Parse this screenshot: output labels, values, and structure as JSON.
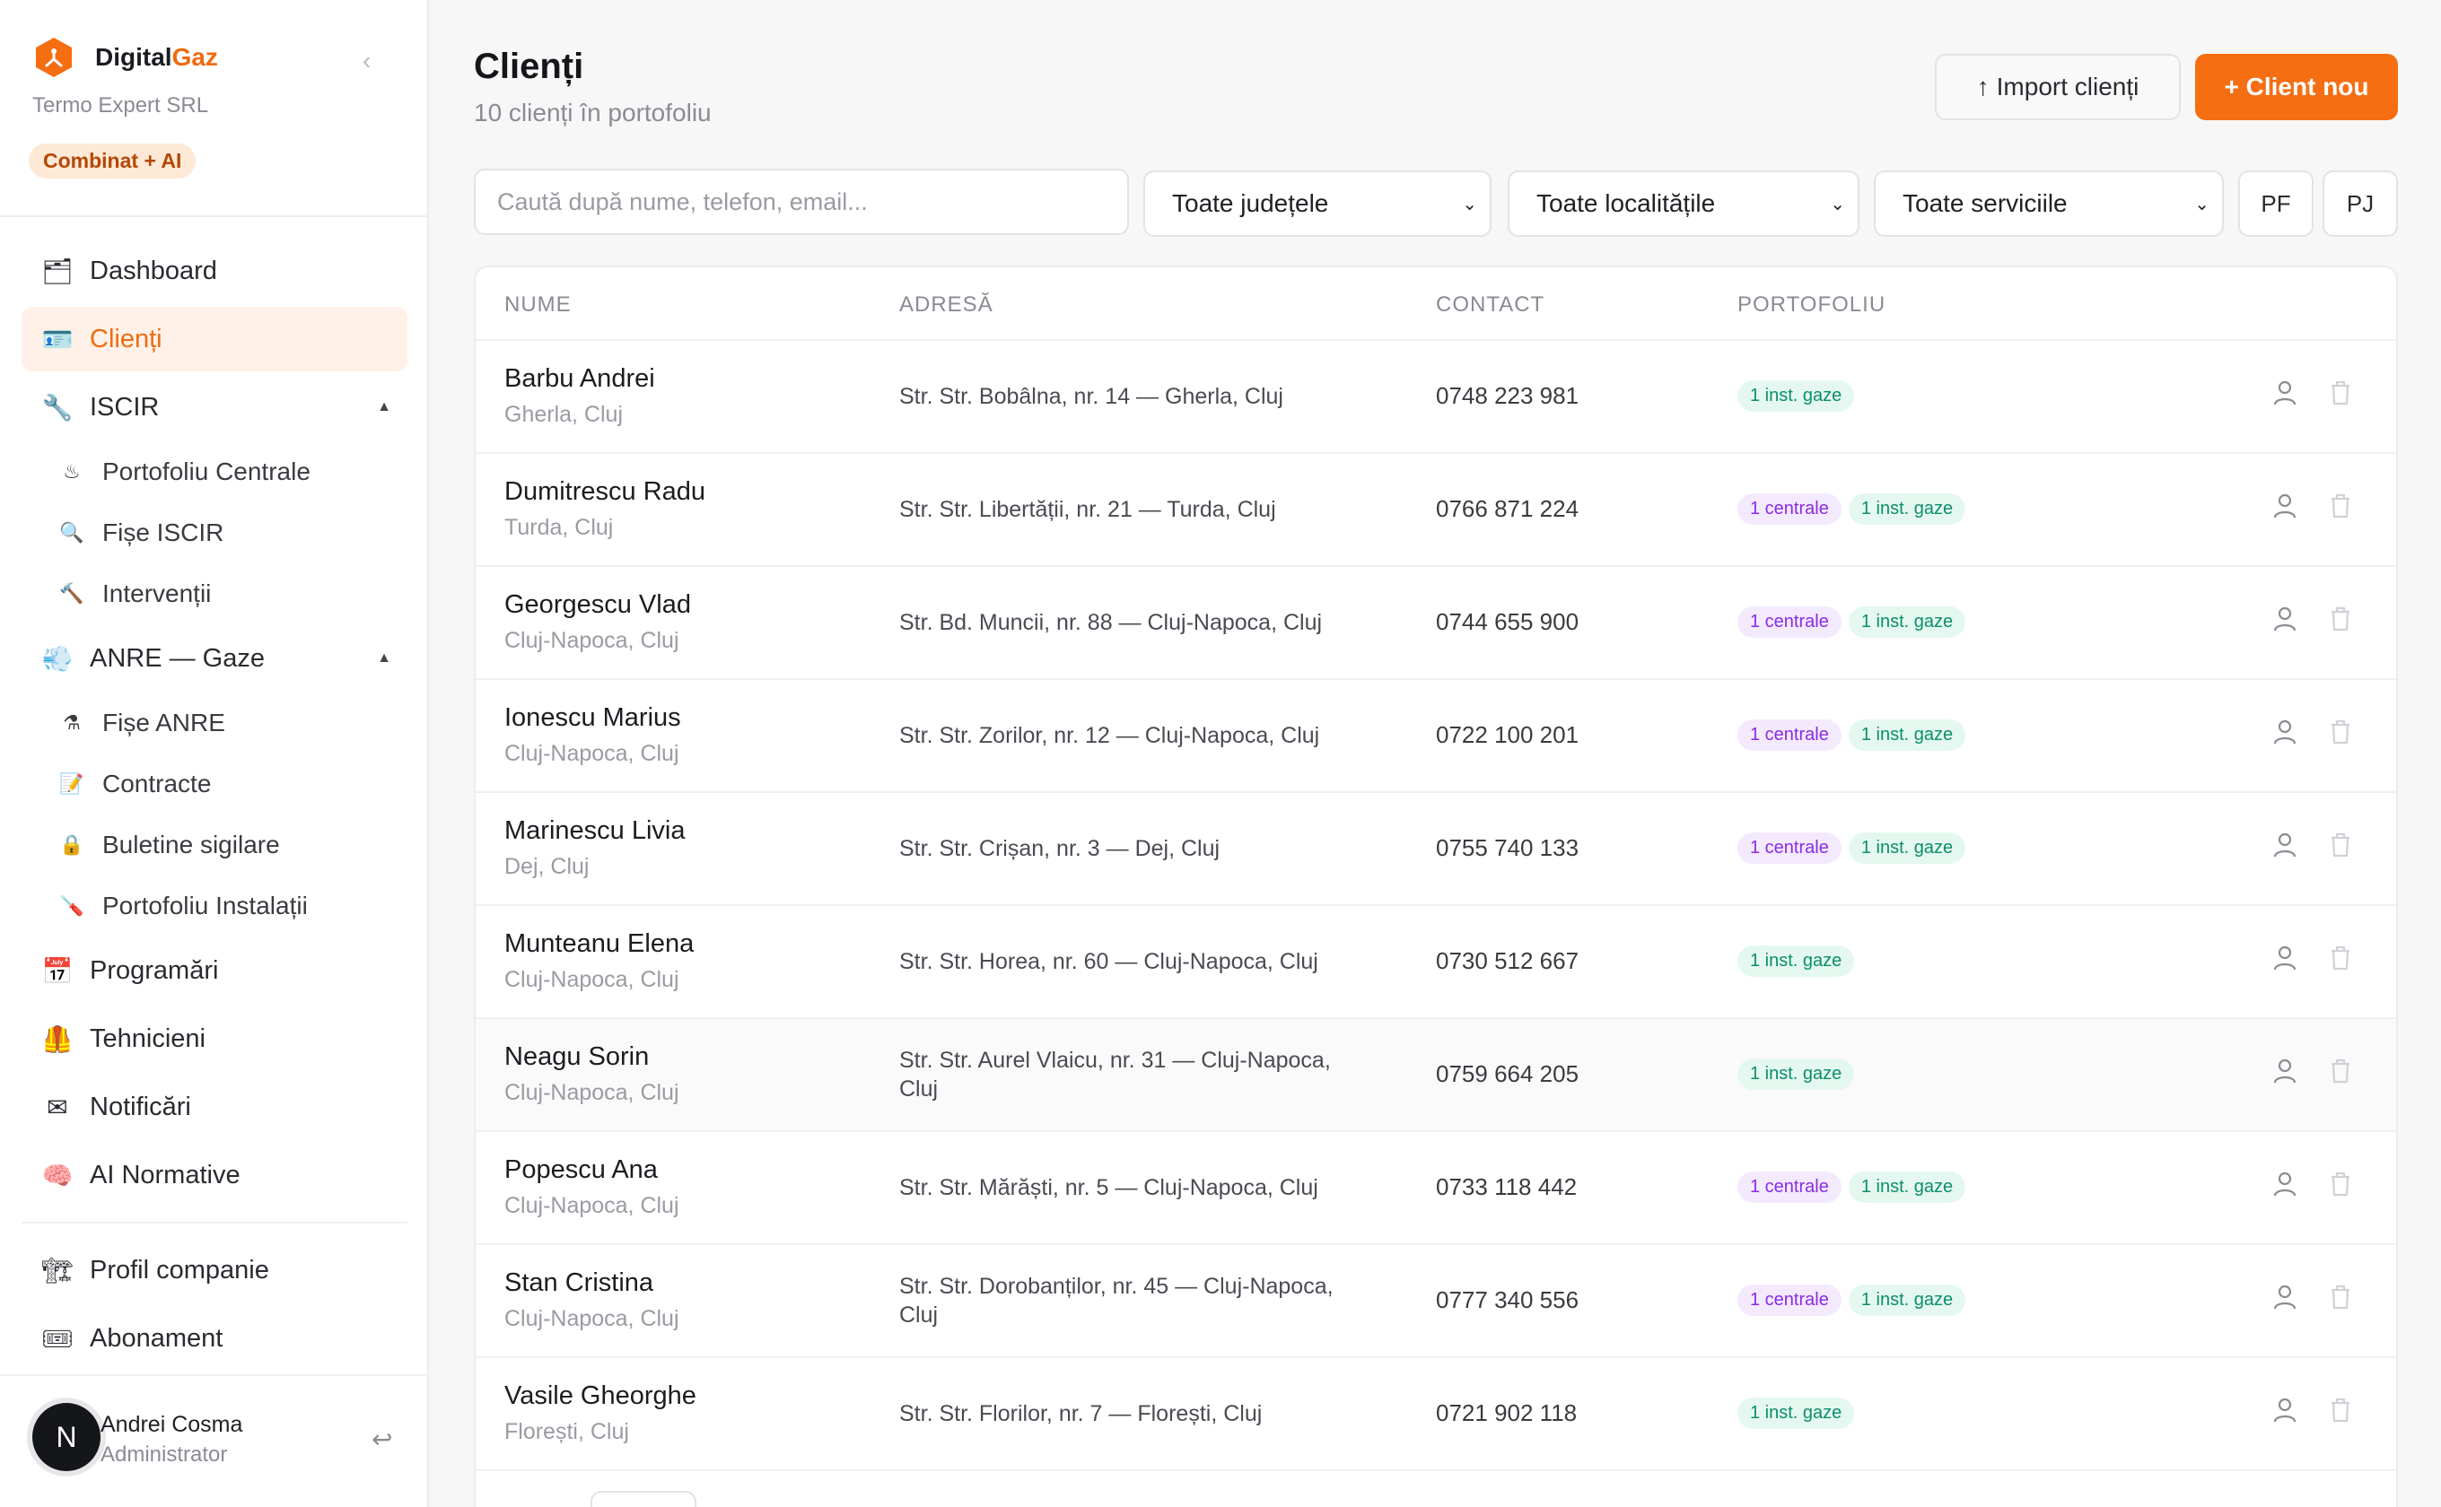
{
  "brand": {
    "name_a": "Digital",
    "name_b": "Gaz",
    "company": "Termo Expert SRL",
    "plan": "Combinat + AI"
  },
  "nav": {
    "dashboard": "Dashboard",
    "clienti": "Clienți",
    "iscir": "ISCIR",
    "iscir_items": [
      "Portofoliu Centrale",
      "Fișe ISCIR",
      "Intervenții"
    ],
    "anre": "ANRE — Gaze",
    "anre_items": [
      "Fișe ANRE",
      "Contracte",
      "Buletine sigilare",
      "Portofoliu Instalații"
    ],
    "programari": "Programări",
    "tehnicieni": "Tehnicieni",
    "notificari": "Notificări",
    "ai": "AI Normative",
    "profil": "Profil companie",
    "abonament": "Abonament"
  },
  "user": {
    "initial": "N",
    "name": "Andrei Cosma",
    "role": "Administrator"
  },
  "header": {
    "title": "Clienți",
    "subtitle": "10 clienți în portofoliu",
    "import_label": "Import clienți",
    "new_label": "+ Client nou"
  },
  "filters": {
    "search_placeholder": "Caută după nume, telefon, email...",
    "judet": "Toate județele",
    "localitate": "Toate localitățile",
    "serviciu": "Toate serviciile",
    "pf": "PF",
    "pj": "PJ"
  },
  "table": {
    "headers": [
      "NUME",
      "ADRESĂ",
      "CONTACT",
      "PORTOFOLIU"
    ],
    "tag_centrale": "1 centrale",
    "tag_gaze": "1 inst. gaze",
    "rows": [
      {
        "name": "Barbu Andrei",
        "loc": "Gherla, Cluj",
        "addr": "Str. Str. Bobâlna, nr. 14 — Gherla, Cluj",
        "phone": "0748 223 981"
      },
      {
        "name": "Dumitrescu Radu",
        "loc": "Turda, Cluj",
        "addr": "Str. Str. Libertății, nr. 21 — Turda, Cluj",
        "phone": "0766 871 224"
      },
      {
        "name": "Georgescu Vlad",
        "loc": "Cluj-Napoca, Cluj",
        "addr": "Str. Bd. Muncii, nr. 88 — Cluj-Napoca, Cluj",
        "phone": "0744 655 900"
      },
      {
        "name": "Ionescu Marius",
        "loc": "Cluj-Napoca, Cluj",
        "addr": "Str. Str. Zorilor, nr. 12 — Cluj-Napoca, Cluj",
        "phone": "0722 100 201"
      },
      {
        "name": "Marinescu Livia",
        "loc": "Dej, Cluj",
        "addr": "Str. Str. Crișan, nr. 3 — Dej, Cluj",
        "phone": "0755 740 133"
      },
      {
        "name": "Munteanu Elena",
        "loc": "Cluj-Napoca, Cluj",
        "addr": "Str. Str. Horea, nr. 60 — Cluj-Napoca, Cluj",
        "phone": "0730 512 667"
      },
      {
        "name": "Neagu Sorin",
        "loc": "Cluj-Napoca, Cluj",
        "addr": "Str. Str. Aurel Vlaicu, nr. 31 — Cluj-Napoca, Cluj",
        "phone": "0759 664 205"
      },
      {
        "name": "Popescu Ana",
        "loc": "Cluj-Napoca, Cluj",
        "addr": "Str. Str. Mărăști, nr. 5 — Cluj-Napoca, Cluj",
        "phone": "0733 118 442"
      },
      {
        "name": "Stan Cristina",
        "loc": "Cluj-Napoca, Cluj",
        "addr": "Str. Str. Dorobanților, nr. 45 — Cluj-Napoca, Cluj",
        "phone": "0777 340 556"
      },
      {
        "name": "Vasile Gheorghe",
        "loc": "Florești, Cluj",
        "addr": "Str. Str. Florilor, nr. 7 — Florești, Cluj",
        "phone": "0721 902 118"
      }
    ]
  },
  "colors": {
    "accent": "#f56e12",
    "centrale": "#8a2be2",
    "gaze": "#0a8f6a"
  }
}
